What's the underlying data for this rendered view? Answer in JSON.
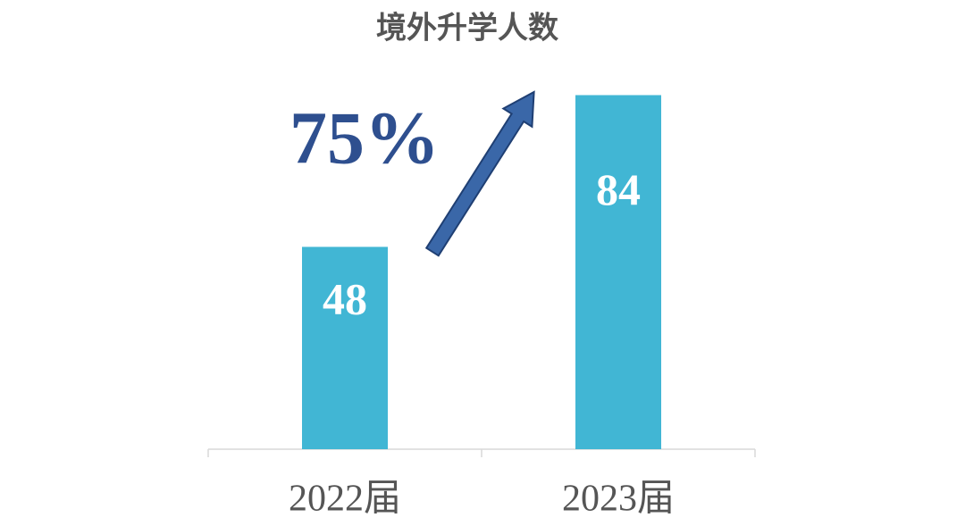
{
  "chart_data": {
    "type": "bar",
    "title": "境外升学人数",
    "categories": [
      "2022届",
      "2023届"
    ],
    "values": [
      48,
      84
    ],
    "color": "#41b6d4",
    "ylim": [
      0,
      100
    ],
    "annotation": "75%"
  }
}
